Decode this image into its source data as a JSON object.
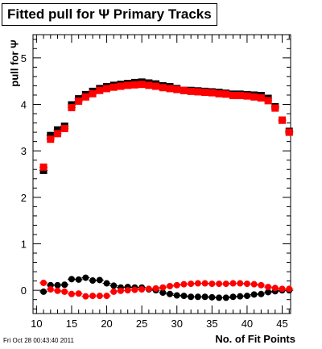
{
  "title": "Fitted pull for Ψ  Primary Tracks",
  "timestamp": "Fri Oct 28 00:43:40 2011",
  "chart_data": {
    "type": "scatter",
    "title": "Fitted pull for Ψ  Primary Tracks",
    "xlabel": "No. of Fit Points",
    "ylabel": "pull for Ψ",
    "xlim": [
      9.5,
      46.2
    ],
    "ylim": [
      -0.5,
      5.5
    ],
    "xticks": [
      10,
      15,
      20,
      25,
      30,
      35,
      40,
      45
    ],
    "yticks": [
      0,
      1,
      2,
      3,
      4,
      5
    ],
    "grid": false,
    "legend": "none",
    "series": [
      {
        "color": "#000000",
        "marker": "square",
        "x": [
          11,
          12,
          13,
          14,
          15,
          16,
          17,
          18,
          19,
          20,
          21,
          22,
          23,
          24,
          25,
          26,
          27,
          28,
          29,
          30,
          31,
          32,
          33,
          34,
          35,
          36,
          37,
          38,
          39,
          40,
          41,
          42,
          43,
          44,
          45,
          46
        ],
        "values": [
          2.58,
          3.33,
          3.45,
          3.53,
          3.99,
          4.12,
          4.21,
          4.28,
          4.34,
          4.38,
          4.41,
          4.43,
          4.45,
          4.47,
          4.48,
          4.46,
          4.44,
          4.4,
          4.38,
          4.34,
          4.3,
          4.3,
          4.29,
          4.28,
          4.27,
          4.26,
          4.24,
          4.22,
          4.22,
          4.21,
          4.2,
          4.19,
          4.13,
          3.95,
          3.66,
          3.42
        ]
      },
      {
        "color": "#ff0000",
        "marker": "square",
        "x": [
          11,
          12,
          13,
          14,
          15,
          16,
          17,
          18,
          19,
          20,
          21,
          22,
          23,
          24,
          25,
          26,
          27,
          28,
          29,
          30,
          31,
          32,
          33,
          34,
          35,
          36,
          37,
          38,
          39,
          40,
          41,
          42,
          43,
          44,
          45,
          46
        ],
        "values": [
          2.65,
          3.25,
          3.37,
          3.48,
          3.93,
          4.07,
          4.16,
          4.23,
          4.3,
          4.34,
          4.37,
          4.39,
          4.41,
          4.42,
          4.43,
          4.41,
          4.39,
          4.36,
          4.34,
          4.32,
          4.3,
          4.28,
          4.27,
          4.26,
          4.25,
          4.23,
          4.22,
          4.19,
          4.19,
          4.18,
          4.16,
          4.14,
          4.08,
          3.92,
          3.66,
          3.4
        ]
      },
      {
        "color": "#000000",
        "marker": "circle",
        "x": [
          11,
          12,
          13,
          14,
          15,
          16,
          17,
          18,
          19,
          20,
          21,
          22,
          23,
          24,
          25,
          26,
          27,
          28,
          29,
          30,
          31,
          32,
          33,
          34,
          35,
          36,
          37,
          38,
          39,
          40,
          41,
          42,
          43,
          44,
          45,
          46
        ],
        "values": [
          -0.03,
          0.11,
          0.11,
          0.12,
          0.24,
          0.23,
          0.27,
          0.21,
          0.22,
          0.15,
          0.1,
          0.06,
          0.07,
          0.06,
          0.06,
          0.02,
          0.0,
          -0.05,
          -0.08,
          -0.11,
          -0.12,
          -0.14,
          -0.14,
          -0.14,
          -0.15,
          -0.16,
          -0.16,
          -0.14,
          -0.13,
          -0.12,
          -0.09,
          -0.08,
          -0.04,
          -0.02,
          0.0,
          0.0
        ]
      },
      {
        "color": "#ff0000",
        "marker": "circle",
        "x": [
          11,
          12,
          13,
          14,
          15,
          16,
          17,
          18,
          19,
          20,
          21,
          22,
          23,
          24,
          25,
          26,
          27,
          28,
          29,
          30,
          31,
          32,
          33,
          34,
          35,
          36,
          37,
          38,
          39,
          40,
          41,
          42,
          43,
          44,
          45,
          46
        ],
        "values": [
          0.16,
          0.02,
          -0.01,
          -0.03,
          -0.08,
          -0.07,
          -0.13,
          -0.12,
          -0.12,
          -0.12,
          -0.03,
          -0.01,
          0.0,
          0.01,
          0.02,
          0.03,
          0.04,
          0.06,
          0.09,
          0.11,
          0.13,
          0.14,
          0.15,
          0.15,
          0.14,
          0.14,
          0.14,
          0.15,
          0.15,
          0.14,
          0.13,
          0.11,
          0.07,
          0.05,
          0.03,
          0.03
        ]
      }
    ]
  }
}
